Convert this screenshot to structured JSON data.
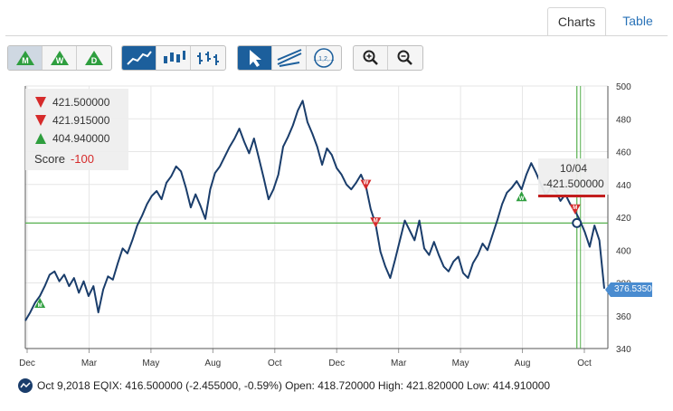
{
  "tabs": {
    "charts": "Charts",
    "table": "Table"
  },
  "toolbar": {
    "period_buttons": [
      {
        "letter": "M",
        "name": "monthly-button"
      },
      {
        "letter": "W",
        "name": "weekly-button"
      },
      {
        "letter": "D",
        "name": "daily-button"
      }
    ],
    "text_button_label": "1,1,2,..."
  },
  "legend": {
    "items": [
      {
        "letter": "M",
        "direction": "down",
        "color": "#d62b2b",
        "value": "421.500000"
      },
      {
        "letter": "W",
        "direction": "down",
        "color": "#d62b2b",
        "value": "421.915000"
      },
      {
        "letter": "D",
        "direction": "up",
        "color": "#2e9e3e",
        "value": "404.940000"
      }
    ],
    "score_label": "Score",
    "score_value": "-100"
  },
  "tooltip": {
    "date": "10/04",
    "value": "-421.500000"
  },
  "price_tag": "376.5350",
  "footer_text": "Oct 9,2018 EQIX: 416.500000 (-2.455000, -0.59%) Open: 418.720000 High: 421.820000 Low: 414.910000",
  "chart_data": {
    "type": "line",
    "ylim": [
      340,
      500
    ],
    "y_ticks": [
      340,
      360,
      380,
      400,
      420,
      440,
      460,
      480,
      500
    ],
    "x_ticks": [
      "Dec",
      "Mar",
      "May",
      "Aug",
      "Oct",
      "Dec",
      "Mar",
      "May",
      "Aug",
      "Oct"
    ],
    "horizontal_line": 416.5,
    "series": [
      {
        "color": "#1a3d6b",
        "points": [
          [
            0,
            357
          ],
          [
            1,
            362
          ],
          [
            2,
            368
          ],
          [
            3,
            372
          ],
          [
            4,
            378
          ],
          [
            5,
            385
          ],
          [
            6,
            387
          ],
          [
            7,
            381
          ],
          [
            8,
            385
          ],
          [
            9,
            378
          ],
          [
            10,
            383
          ],
          [
            11,
            374
          ],
          [
            12,
            381
          ],
          [
            13,
            372
          ],
          [
            14,
            378
          ],
          [
            15,
            362
          ],
          [
            16,
            376
          ],
          [
            17,
            384
          ],
          [
            18,
            382
          ],
          [
            19,
            392
          ],
          [
            20,
            401
          ],
          [
            21,
            398
          ],
          [
            22,
            406
          ],
          [
            23,
            415
          ],
          [
            24,
            421
          ],
          [
            25,
            428
          ],
          [
            26,
            433
          ],
          [
            27,
            436
          ],
          [
            28,
            431
          ],
          [
            29,
            441
          ],
          [
            30,
            445
          ],
          [
            31,
            451
          ],
          [
            32,
            448
          ],
          [
            33,
            438
          ],
          [
            34,
            426
          ],
          [
            35,
            434
          ],
          [
            36,
            427
          ],
          [
            37,
            419
          ],
          [
            38,
            437
          ],
          [
            39,
            447
          ],
          [
            40,
            451
          ],
          [
            41,
            457
          ],
          [
            42,
            463
          ],
          [
            43,
            468
          ],
          [
            44,
            474
          ],
          [
            45,
            466
          ],
          [
            46,
            459
          ],
          [
            47,
            468
          ],
          [
            48,
            456
          ],
          [
            49,
            444
          ],
          [
            50,
            431
          ],
          [
            51,
            437
          ],
          [
            52,
            446
          ],
          [
            53,
            463
          ],
          [
            54,
            469
          ],
          [
            55,
            476
          ],
          [
            56,
            485
          ],
          [
            57,
            491
          ],
          [
            58,
            478
          ],
          [
            59,
            471
          ],
          [
            60,
            463
          ],
          [
            61,
            452
          ],
          [
            62,
            462
          ],
          [
            63,
            458
          ],
          [
            64,
            450
          ],
          [
            65,
            446
          ],
          [
            66,
            440
          ],
          [
            67,
            437
          ],
          [
            68,
            441
          ],
          [
            69,
            446
          ],
          [
            70,
            439
          ],
          [
            71,
            425
          ],
          [
            72,
            416
          ],
          [
            73,
            399
          ],
          [
            74,
            390
          ],
          [
            75,
            383
          ],
          [
            76,
            394
          ],
          [
            77,
            406
          ],
          [
            78,
            418
          ],
          [
            79,
            412
          ],
          [
            80,
            406
          ],
          [
            81,
            418
          ],
          [
            82,
            401
          ],
          [
            83,
            397
          ],
          [
            84,
            405
          ],
          [
            85,
            397
          ],
          [
            86,
            390
          ],
          [
            87,
            387
          ],
          [
            88,
            393
          ],
          [
            89,
            396
          ],
          [
            90,
            386
          ],
          [
            91,
            383
          ],
          [
            92,
            392
          ],
          [
            93,
            397
          ],
          [
            94,
            404
          ],
          [
            95,
            400
          ],
          [
            96,
            409
          ],
          [
            97,
            418
          ],
          [
            98,
            428
          ],
          [
            99,
            435
          ],
          [
            100,
            438
          ],
          [
            101,
            442
          ],
          [
            102,
            437
          ],
          [
            103,
            446
          ],
          [
            104,
            453
          ],
          [
            105,
            447
          ],
          [
            106,
            440
          ],
          [
            107,
            433
          ],
          [
            108,
            438
          ],
          [
            109,
            436
          ],
          [
            110,
            430
          ],
          [
            111,
            434
          ],
          [
            112,
            428
          ],
          [
            113,
            424
          ],
          [
            114,
            418
          ],
          [
            115,
            411
          ],
          [
            116,
            402
          ],
          [
            117,
            415
          ],
          [
            118,
            406
          ],
          [
            119,
            376.5
          ]
        ]
      }
    ],
    "signals": [
      {
        "x": 3,
        "letter": "M",
        "direction": "up"
      },
      {
        "x": 70,
        "letter": "W",
        "direction": "down"
      },
      {
        "x": 72,
        "letter": "M",
        "direction": "down"
      },
      {
        "x": 102,
        "letter": "W",
        "direction": "up"
      },
      {
        "x": 113,
        "letter": "M",
        "direction": "down"
      }
    ]
  }
}
